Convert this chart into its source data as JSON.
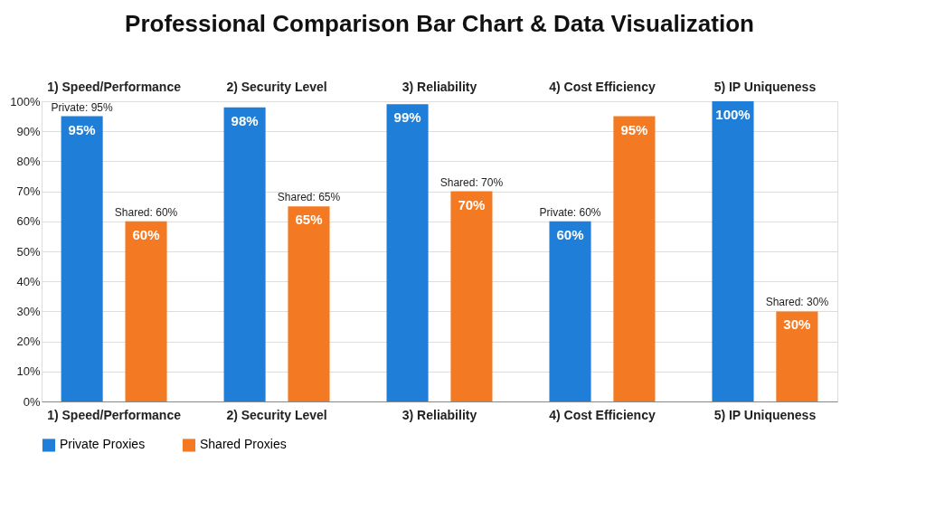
{
  "chart_data": {
    "type": "bar",
    "title": "Professional Comparison Bar Chart & Data Visualization",
    "categories": [
      "1) Speed/Performance",
      "2) Security Level",
      "3) Reliability",
      "4) Cost Efficiency",
      "5) IP Uniqueness"
    ],
    "series": [
      {
        "name": "Private Proxies",
        "color": "#1f7fd8",
        "values": [
          95,
          98,
          99,
          60,
          100
        ],
        "value_labels": [
          "Private: 95%",
          null,
          null,
          "Private: 60%",
          null
        ]
      },
      {
        "name": "Shared Proxies",
        "color": "#f37a22",
        "values": [
          60,
          65,
          70,
          95,
          30
        ],
        "value_labels": [
          "Shared: 60%",
          "Shared: 65%",
          "Shared: 70%",
          null,
          "Shared: 30%"
        ]
      }
    ],
    "ylim": [
      0,
      100
    ],
    "yticks": [
      {
        "value": 0,
        "label": "0%"
      },
      {
        "value": 10,
        "label": "10%"
      },
      {
        "value": 20,
        "label": "20%"
      },
      {
        "value": 30,
        "label": "30%"
      },
      {
        "value": 40,
        "label": "40%"
      },
      {
        "value": 50,
        "label": "50%"
      },
      {
        "value": 60,
        "label": "60%"
      },
      {
        "value": 70,
        "label": "70%"
      },
      {
        "value": 80,
        "label": "80%"
      },
      {
        "value": 90,
        "label": "90%"
      },
      {
        "value": 100,
        "label": "100%"
      }
    ],
    "value_labels": [
      [
        "95%",
        "98%",
        "99%",
        "60%",
        "100%"
      ],
      [
        "60%",
        "65%",
        "70%",
        "95%",
        "30%"
      ]
    ],
    "grid": "y",
    "legend": "bottom"
  }
}
